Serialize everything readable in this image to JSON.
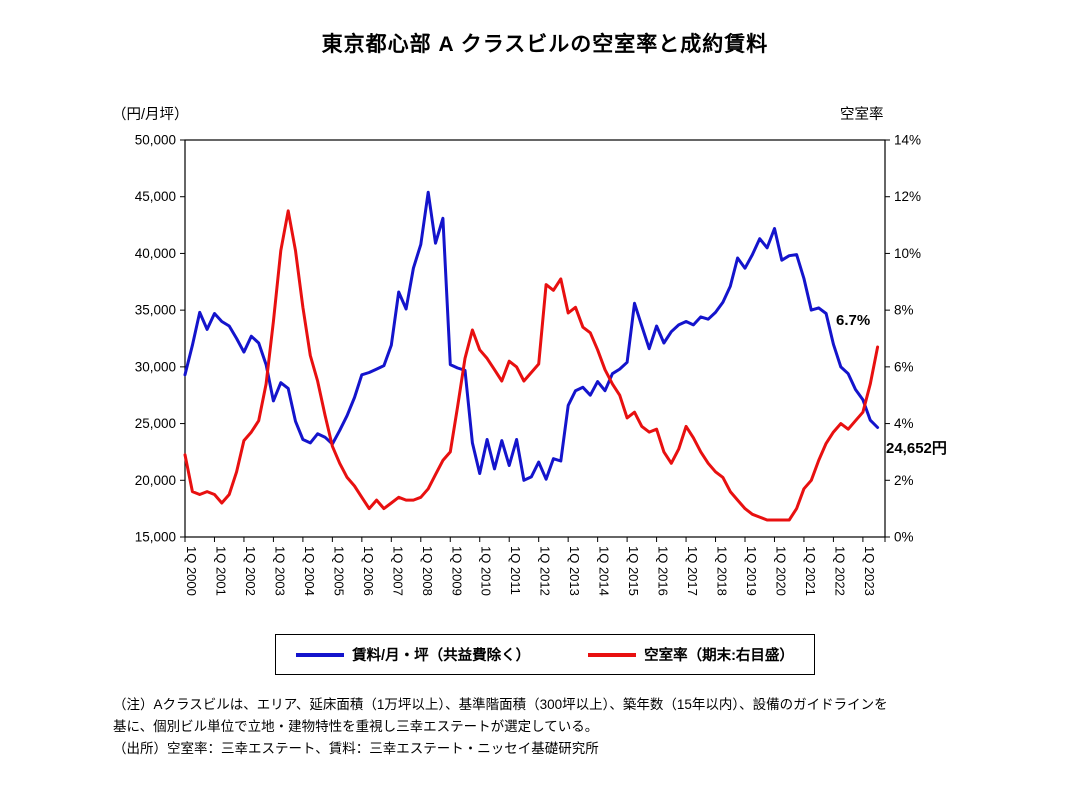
{
  "title": "東京都心部 A クラスビルの空室率と成約賃料",
  "left_axis": {
    "unit_label": "（円/月坪）",
    "min": 15000,
    "max": 50000,
    "step": 5000
  },
  "right_axis": {
    "title": "空室率",
    "min": 0,
    "max": 14,
    "step": 2,
    "suffix": "%"
  },
  "legend": [
    {
      "label": "賃料/月・坪（共益費除く）",
      "color": "#1414CC"
    },
    {
      "label": "空室率（期末:右目盛）",
      "color": "#E81010"
    }
  ],
  "annotations": {
    "vacancy_end": "6.7%",
    "rent_end": "24,652円"
  },
  "notes": [
    "（注）Aクラスビルは、エリア、延床面積（1万坪以上）、基準階面積（300坪以上）、築年数（15年以内）、設備のガイドラインを",
    "基に、個別ビル単位で立地・建物特性を重視し三幸エステートが選定している。",
    "（出所）空室率：三幸エステート、賃料：三幸エステート・ニッセイ基礎研究所"
  ],
  "chart_data": {
    "type": "line",
    "title": "東京都心部 A クラスビルの空室率と成約賃料",
    "frequency": "quarterly",
    "x_start": "1Q 2000",
    "x_end": "3Q 2023",
    "categories": [
      "1Q 2000",
      "1Q 2001",
      "1Q 2002",
      "1Q 2003",
      "1Q 2004",
      "1Q 2005",
      "1Q 2006",
      "1Q 2007",
      "1Q 2008",
      "1Q 2009",
      "1Q 2010",
      "1Q 2011",
      "1Q 2012",
      "1Q 2013",
      "1Q 2014",
      "1Q 2015",
      "1Q 2016",
      "1Q 2017",
      "1Q 2018",
      "1Q 2019",
      "1Q 2020",
      "1Q 2021",
      "1Q 2022",
      "1Q 2023"
    ],
    "left_ylim": [
      15000,
      50000
    ],
    "right_ylim": [
      0,
      14
    ],
    "grid": false,
    "legend_position": "bottom",
    "series": [
      {
        "name": "賃料/月・坪（共益費除く）",
        "axis": "left",
        "unit": "円/月坪",
        "color": "#1414CC",
        "last_value_label": "24,652円",
        "values": [
          29300,
          31900,
          34800,
          33300,
          34700,
          34000,
          33600,
          32500,
          31300,
          32700,
          32100,
          30200,
          27000,
          28600,
          28100,
          25200,
          23600,
          23300,
          24100,
          23800,
          23200,
          24400,
          25700,
          27300,
          29300,
          29500,
          29800,
          30100,
          31900,
          36600,
          35100,
          38700,
          40800,
          45400,
          40900,
          43100,
          30200,
          29900,
          29700,
          23300,
          20600,
          23600,
          21000,
          23500,
          21300,
          23600,
          20000,
          20300,
          21600,
          20100,
          21900,
          21700,
          26600,
          27900,
          28200,
          27500,
          28700,
          27900,
          29400,
          29800,
          30400,
          35600,
          33600,
          31600,
          33600,
          32100,
          33100,
          33700,
          34000,
          33700,
          34400,
          34200,
          34800,
          35700,
          37100,
          39600,
          38700,
          39900,
          41300,
          40500,
          42200,
          39400,
          39800,
          39900,
          37800,
          35000,
          35200,
          34700,
          32000,
          30000,
          29400,
          28000,
          27100,
          25300,
          24652
        ]
      },
      {
        "name": "空室率（期末:右目盛）",
        "axis": "right",
        "unit": "%",
        "color": "#E81010",
        "last_value_label": "6.7%",
        "values": [
          2.9,
          1.6,
          1.5,
          1.6,
          1.5,
          1.2,
          1.5,
          2.3,
          3.4,
          3.7,
          4.1,
          5.4,
          7.6,
          10.1,
          11.5,
          10.1,
          8.1,
          6.4,
          5.5,
          4.3,
          3.2,
          2.6,
          2.1,
          1.8,
          1.4,
          1.0,
          1.3,
          1.0,
          1.2,
          1.4,
          1.3,
          1.3,
          1.4,
          1.7,
          2.2,
          2.7,
          3.0,
          4.6,
          6.3,
          7.3,
          6.6,
          6.3,
          5.9,
          5.5,
          6.2,
          6.0,
          5.5,
          5.8,
          6.1,
          8.9,
          8.7,
          9.1,
          7.9,
          8.1,
          7.4,
          7.2,
          6.6,
          5.9,
          5.4,
          5.0,
          4.2,
          4.4,
          3.9,
          3.7,
          3.8,
          3.0,
          2.6,
          3.1,
          3.9,
          3.5,
          3.0,
          2.6,
          2.3,
          2.1,
          1.6,
          1.3,
          1.0,
          0.8,
          0.7,
          0.6,
          0.6,
          0.6,
          0.6,
          1.0,
          1.7,
          2.0,
          2.7,
          3.3,
          3.7,
          4.0,
          3.8,
          4.1,
          4.4,
          5.4,
          6.7
        ]
      }
    ]
  }
}
